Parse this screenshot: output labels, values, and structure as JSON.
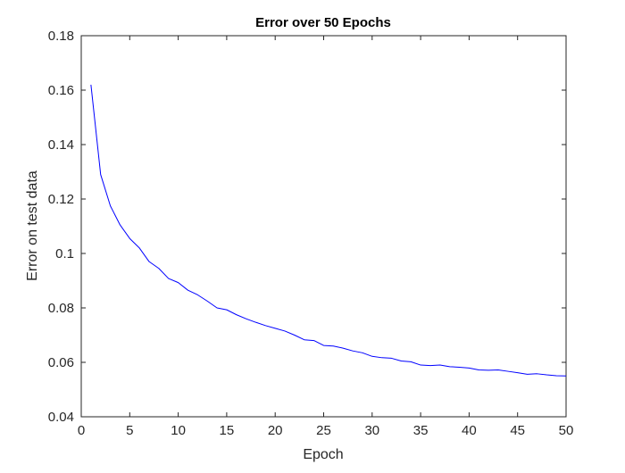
{
  "chart_data": {
    "type": "line",
    "title": "Error over 50 Epochs",
    "xlabel": "Epoch",
    "ylabel": "Error on test data",
    "xlim": [
      0,
      50
    ],
    "ylim": [
      0.04,
      0.18
    ],
    "xticks": [
      0,
      5,
      10,
      15,
      20,
      25,
      30,
      35,
      40,
      45,
      50
    ],
    "yticks": [
      0.04,
      0.06,
      0.08,
      0.1,
      0.12,
      0.14,
      0.16,
      0.18
    ],
    "ytick_labels": [
      "0.04",
      "0.06",
      "0.08",
      "0.1",
      "0.12",
      "0.14",
      "0.16",
      "0.18"
    ],
    "grid": false,
    "series": [
      {
        "color": "#0000ff",
        "x": [
          1,
          2,
          3,
          4,
          5,
          6,
          7,
          8,
          9,
          10,
          11,
          12,
          13,
          14,
          15,
          16,
          17,
          18,
          19,
          20,
          21,
          22,
          23,
          24,
          25,
          26,
          27,
          28,
          29,
          30,
          31,
          32,
          33,
          34,
          35,
          36,
          37,
          38,
          39,
          40,
          41,
          42,
          43,
          44,
          45,
          46,
          47,
          48,
          49,
          50
        ],
        "values": [
          0.162,
          0.129,
          0.1175,
          0.1105,
          0.1055,
          0.102,
          0.097,
          0.0945,
          0.0908,
          0.0893,
          0.0865,
          0.0848,
          0.0825,
          0.08,
          0.0793,
          0.0775,
          0.076,
          0.0747,
          0.0735,
          0.0725,
          0.0715,
          0.07,
          0.0683,
          0.068,
          0.0662,
          0.066,
          0.0652,
          0.0642,
          0.0635,
          0.0622,
          0.0617,
          0.0615,
          0.0605,
          0.0602,
          0.059,
          0.0588,
          0.059,
          0.0584,
          0.0582,
          0.0579,
          0.0572,
          0.0571,
          0.0572,
          0.0567,
          0.0562,
          0.0556,
          0.0558,
          0.0554,
          0.0551,
          0.055
        ]
      }
    ]
  }
}
